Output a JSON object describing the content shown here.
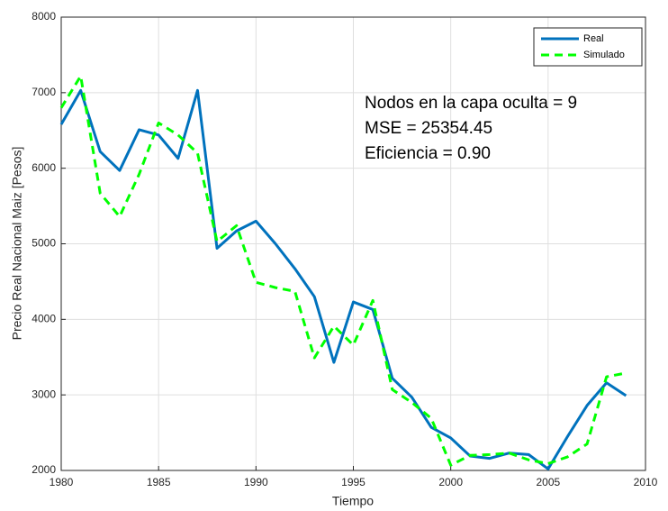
{
  "chart_data": {
    "type": "line",
    "x": [
      1980,
      1981,
      1982,
      1983,
      1984,
      1985,
      1986,
      1987,
      1988,
      1989,
      1990,
      1991,
      1992,
      1993,
      1994,
      1995,
      1996,
      1997,
      1998,
      1999,
      2000,
      2001,
      2002,
      2003,
      2004,
      2005,
      2006,
      2007,
      2008,
      2009
    ],
    "series": [
      {
        "name": "Real",
        "color": "#0072bd",
        "dash": false,
        "values": [
          6580,
          7030,
          6220,
          5970,
          6510,
          6440,
          6130,
          7030,
          4940,
          5170,
          5300,
          5000,
          4670,
          4300,
          3430,
          4230,
          4130,
          3220,
          2970,
          2570,
          2430,
          2190,
          2160,
          2230,
          2210,
          2020,
          2450,
          2860,
          3160,
          2990
        ]
      },
      {
        "name": "Simulado",
        "color": "#00ff00",
        "dash": true,
        "values": [
          6800,
          7220,
          5670,
          5360,
          5920,
          6600,
          6440,
          6200,
          5030,
          5240,
          4490,
          4420,
          4370,
          3490,
          3910,
          3660,
          4250,
          3070,
          2900,
          2690,
          2070,
          2200,
          2210,
          2230,
          2140,
          2090,
          2180,
          2350,
          3240,
          3290
        ]
      }
    ],
    "xlabel": "Tiempo",
    "ylabel": "Precio Real Nacional Maiz [Pesos]",
    "annotations": [
      "Nodos en la capa oculta = 9",
      "MSE = 25354.45",
      "Eficiencia = 0.90"
    ],
    "xlim": [
      1980,
      2010
    ],
    "xticks": [
      1980,
      1985,
      1990,
      1995,
      2000,
      2005,
      2010
    ],
    "ylim": [
      2000,
      8000
    ],
    "yticks": [
      2000,
      3000,
      4000,
      5000,
      6000,
      7000,
      8000
    ],
    "grid": true,
    "legend": "top-right"
  }
}
